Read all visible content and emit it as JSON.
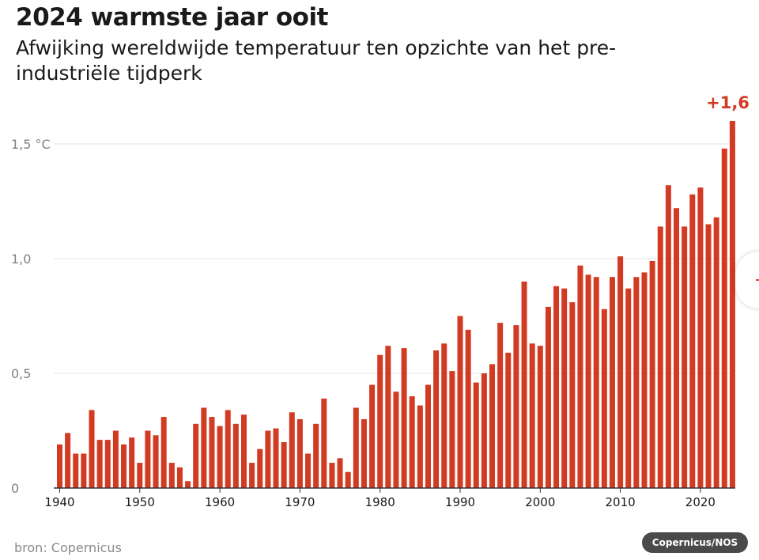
{
  "title": "2024 warmste jaar ooit",
  "subtitle": "Afwijking wereldwijde temperatuur ten opzichte van het pre-industriële tijdperk",
  "source": "bron: Copernicus",
  "credit": "Copernicus/NOS",
  "colors": {
    "bar": "#d23a22",
    "grid": "#e3e3e3",
    "axis": "#333333"
  },
  "chart_data": {
    "type": "bar",
    "title": "2024 warmste jaar ooit",
    "subtitle": "Afwijking wereldwijde temperatuur ten opzichte van het pre-industriële tijdperk",
    "ylim": [
      0,
      1.6
    ],
    "yticks": [
      0,
      0.5,
      1.0,
      1.5
    ],
    "ytick_labels": [
      "0",
      "0,5",
      "1,0",
      "1,5 °C"
    ],
    "xticks": [
      1940,
      1950,
      1960,
      1970,
      1980,
      1990,
      2000,
      2010,
      2020
    ],
    "grid": true,
    "annotation": {
      "year": 2024,
      "text": "+1,6"
    },
    "x": [
      1940,
      1941,
      1942,
      1943,
      1944,
      1945,
      1946,
      1947,
      1948,
      1949,
      1950,
      1951,
      1952,
      1953,
      1954,
      1955,
      1956,
      1957,
      1958,
      1959,
      1960,
      1961,
      1962,
      1963,
      1964,
      1965,
      1966,
      1967,
      1968,
      1969,
      1970,
      1971,
      1972,
      1973,
      1974,
      1975,
      1976,
      1977,
      1978,
      1979,
      1980,
      1981,
      1982,
      1983,
      1984,
      1985,
      1986,
      1987,
      1988,
      1989,
      1990,
      1991,
      1992,
      1993,
      1994,
      1995,
      1996,
      1997,
      1998,
      1999,
      2000,
      2001,
      2002,
      2003,
      2004,
      2005,
      2006,
      2007,
      2008,
      2009,
      2010,
      2011,
      2012,
      2013,
      2014,
      2015,
      2016,
      2017,
      2018,
      2019,
      2020,
      2021,
      2022,
      2023,
      2024
    ],
    "values": [
      0.19,
      0.24,
      0.15,
      0.15,
      0.34,
      0.21,
      0.21,
      0.25,
      0.19,
      0.22,
      0.11,
      0.25,
      0.23,
      0.31,
      0.11,
      0.09,
      0.03,
      0.28,
      0.35,
      0.31,
      0.27,
      0.34,
      0.28,
      0.32,
      0.11,
      0.17,
      0.25,
      0.26,
      0.2,
      0.33,
      0.3,
      0.15,
      0.28,
      0.39,
      0.11,
      0.13,
      0.07,
      0.35,
      0.3,
      0.45,
      0.58,
      0.62,
      0.42,
      0.61,
      0.4,
      0.36,
      0.45,
      0.6,
      0.63,
      0.51,
      0.75,
      0.69,
      0.46,
      0.5,
      0.54,
      0.72,
      0.59,
      0.71,
      0.9,
      0.63,
      0.62,
      0.79,
      0.88,
      0.87,
      0.81,
      0.97,
      0.93,
      0.92,
      0.78,
      0.92,
      1.01,
      0.87,
      0.92,
      0.94,
      0.99,
      1.14,
      1.32,
      1.22,
      1.14,
      1.28,
      1.31,
      1.15,
      1.18,
      1.48,
      1.6
    ]
  }
}
